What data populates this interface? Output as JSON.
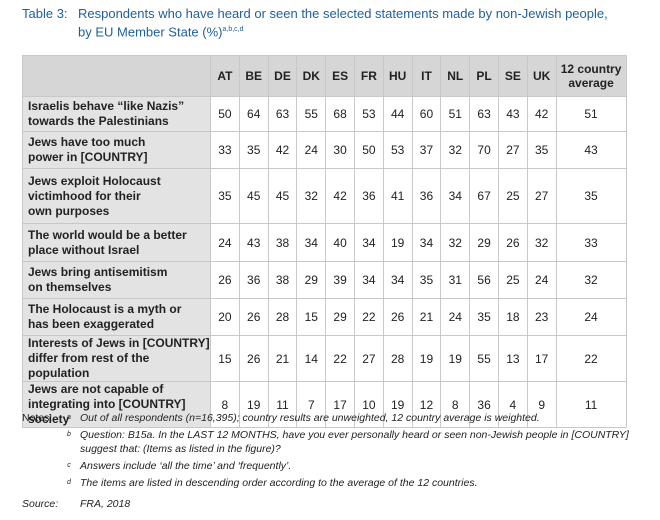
{
  "caption": {
    "label": "Table 3:",
    "lines": [
      "Respondents who have heard or seen the selected statements made by non-Jewish people,",
      "by EU Member State (%)"
    ],
    "superscript": "a,b,c,d"
  },
  "table": {
    "columns": [
      "AT",
      "BE",
      "DE",
      "DK",
      "ES",
      "FR",
      "HU",
      "IT",
      "NL",
      "PL",
      "SE",
      "UK",
      "12 country average"
    ],
    "rows": [
      {
        "label": [
          "Israelis behave “like Nazis”",
          "towards the Palestinians"
        ],
        "values": [
          50,
          64,
          63,
          55,
          68,
          53,
          44,
          60,
          51,
          63,
          43,
          42,
          51
        ]
      },
      {
        "label": [
          "Jews have too much",
          "power in [COUNTRY]"
        ],
        "values": [
          33,
          35,
          42,
          24,
          30,
          50,
          53,
          37,
          32,
          70,
          27,
          35,
          43
        ]
      },
      {
        "label": [
          "Jews exploit Holocaust",
          "victimhood for their",
          "own purposes"
        ],
        "values": [
          35,
          45,
          45,
          32,
          42,
          36,
          41,
          36,
          34,
          67,
          25,
          27,
          35
        ]
      },
      {
        "label": [
          "The world would be a better",
          "place without Israel"
        ],
        "values": [
          24,
          43,
          38,
          34,
          40,
          34,
          19,
          34,
          32,
          29,
          26,
          32,
          33
        ]
      },
      {
        "label": [
          "Jews bring antisemitism",
          "on themselves"
        ],
        "values": [
          26,
          36,
          38,
          29,
          39,
          34,
          34,
          35,
          31,
          56,
          25,
          24,
          32
        ]
      },
      {
        "label": [
          "The Holocaust is a myth or",
          "has been exaggerated"
        ],
        "values": [
          20,
          26,
          28,
          15,
          29,
          22,
          26,
          21,
          24,
          35,
          18,
          23,
          24
        ]
      },
      {
        "label": [
          "Interests of Jews in [COUNTRY]",
          "differ from rest of the population"
        ],
        "values": [
          15,
          26,
          21,
          14,
          22,
          27,
          28,
          19,
          19,
          55,
          13,
          17,
          22
        ]
      },
      {
        "label": [
          "Jews are not capable of",
          "integrating into [COUNTRY] society"
        ],
        "values": [
          8,
          19,
          11,
          7,
          17,
          10,
          19,
          12,
          8,
          36,
          4,
          9,
          11
        ]
      }
    ]
  },
  "notes": {
    "label": "Notes:",
    "items": [
      {
        "marker": "a",
        "text": "Out of all respondents (n=16,395); country results are unweighted, 12 country average is weighted."
      },
      {
        "marker": "b",
        "text": "Question: B15a. In the LAST 12 MONTHS, have you ever personally heard or seen non-Jewish people in [COUNTRY] suggest that: (Items as listed in the figure)?"
      },
      {
        "marker": "c",
        "text": "Answers include ‘all the time’ and ‘frequently’."
      },
      {
        "marker": "d",
        "text": "The items are listed in descending order according to the average of the 12 countries."
      }
    ]
  },
  "source": {
    "label": "Source:",
    "text": "FRA, 2018"
  }
}
